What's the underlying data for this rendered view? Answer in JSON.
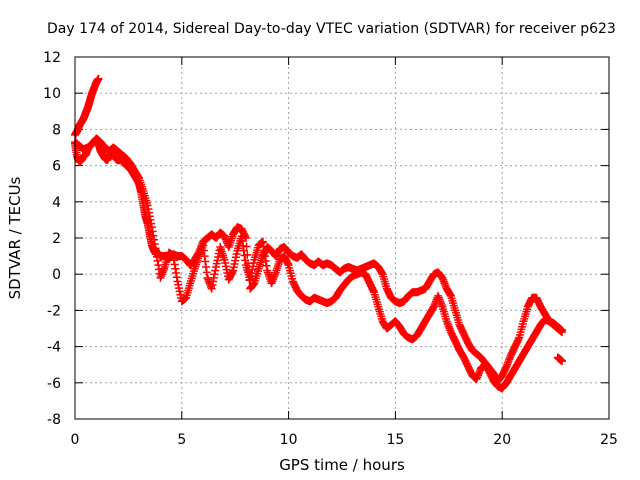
{
  "chart_data": {
    "type": "scatter",
    "title": "Day 174 of 2014, Sidereal Day-to-day VTEC variation (SDTVAR) for receiver p623",
    "xlabel": "GPS time / hours",
    "ylabel": "SDTVAR / TECUs",
    "xlim": [
      0,
      25
    ],
    "ylim": [
      -8,
      12
    ],
    "xticks": [
      0,
      5,
      10,
      15,
      20,
      25
    ],
    "yticks": [
      -8,
      -6,
      -4,
      -2,
      0,
      2,
      4,
      6,
      8,
      10,
      12
    ],
    "grid": true,
    "marker": "+",
    "marker_color": "#ff0000",
    "series": [
      {
        "name": "main-trace",
        "points": [
          [
            0.0,
            7.2
          ],
          [
            0.1,
            6.5
          ],
          [
            0.2,
            6.2
          ],
          [
            0.3,
            6.3
          ],
          [
            0.4,
            6.5
          ],
          [
            0.5,
            6.6
          ],
          [
            0.6,
            6.9
          ],
          [
            0.7,
            7.1
          ],
          [
            0.8,
            7.2
          ],
          [
            0.9,
            7.3
          ],
          [
            1.0,
            7.4
          ],
          [
            1.1,
            7.2
          ],
          [
            1.2,
            6.8
          ],
          [
            1.3,
            6.6
          ],
          [
            1.4,
            6.4
          ],
          [
            1.5,
            6.3
          ],
          [
            1.6,
            6.5
          ],
          [
            1.7,
            6.7
          ],
          [
            1.8,
            6.6
          ],
          [
            1.9,
            6.4
          ],
          [
            2.0,
            6.3
          ],
          [
            2.2,
            6.3
          ],
          [
            2.4,
            6.0
          ],
          [
            2.6,
            5.8
          ],
          [
            2.8,
            5.4
          ],
          [
            3.0,
            5.0
          ],
          [
            3.1,
            4.5
          ],
          [
            3.2,
            3.8
          ],
          [
            3.3,
            3.2
          ],
          [
            3.4,
            2.8
          ],
          [
            3.5,
            2.2
          ],
          [
            3.6,
            1.6
          ],
          [
            3.7,
            1.3
          ],
          [
            3.8,
            1.1
          ],
          [
            3.9,
            1.2
          ],
          [
            4.0,
            1.0
          ],
          [
            4.2,
            1.0
          ],
          [
            4.4,
            0.9
          ],
          [
            4.6,
            1.1
          ],
          [
            4.8,
            1.0
          ],
          [
            5.0,
            1.0
          ],
          [
            5.2,
            0.8
          ],
          [
            5.4,
            0.5
          ],
          [
            5.6,
            0.8
          ],
          [
            5.8,
            1.2
          ],
          [
            6.0,
            1.8
          ],
          [
            6.2,
            2.0
          ],
          [
            6.4,
            2.2
          ],
          [
            6.6,
            2.0
          ],
          [
            6.8,
            2.3
          ],
          [
            7.0,
            2.1
          ],
          [
            7.2,
            1.5
          ],
          [
            7.4,
            2.2
          ],
          [
            7.6,
            2.6
          ],
          [
            7.8,
            2.5
          ],
          [
            8.0,
            2.0
          ],
          [
            8.2,
            -0.8
          ],
          [
            8.4,
            -0.5
          ],
          [
            8.6,
            0.3
          ],
          [
            8.8,
            1.0
          ],
          [
            9.0,
            1.5
          ],
          [
            9.2,
            1.3
          ],
          [
            9.4,
            1.0
          ],
          [
            9.6,
            1.4
          ],
          [
            9.8,
            1.5
          ],
          [
            10.0,
            1.2
          ],
          [
            10.2,
            1.0
          ],
          [
            10.4,
            0.9
          ],
          [
            10.6,
            1.1
          ],
          [
            10.8,
            0.8
          ],
          [
            11.0,
            0.6
          ],
          [
            11.2,
            0.5
          ],
          [
            11.4,
            0.7
          ],
          [
            11.6,
            0.5
          ],
          [
            11.8,
            0.6
          ],
          [
            12.0,
            0.5
          ],
          [
            12.2,
            0.3
          ],
          [
            12.4,
            0.1
          ],
          [
            12.6,
            0.3
          ],
          [
            12.8,
            0.4
          ],
          [
            13.0,
            0.3
          ],
          [
            13.2,
            0.2
          ],
          [
            13.4,
            0.3
          ],
          [
            13.6,
            0.4
          ],
          [
            13.8,
            0.5
          ],
          [
            14.0,
            0.6
          ],
          [
            14.2,
            0.4
          ],
          [
            14.4,
            0.0
          ],
          [
            14.6,
            -0.8
          ],
          [
            14.8,
            -1.3
          ],
          [
            15.0,
            -1.5
          ],
          [
            15.2,
            -1.6
          ],
          [
            15.4,
            -1.5
          ],
          [
            15.6,
            -1.2
          ],
          [
            15.8,
            -1.0
          ],
          [
            16.0,
            -1.0
          ],
          [
            16.2,
            -0.9
          ],
          [
            16.4,
            -0.8
          ],
          [
            16.6,
            -0.4
          ],
          [
            16.8,
            0.0
          ],
          [
            17.0,
            0.1
          ],
          [
            17.2,
            -0.2
          ],
          [
            17.4,
            -0.8
          ],
          [
            17.6,
            -1.2
          ],
          [
            17.8,
            -2.0
          ],
          [
            18.0,
            -2.8
          ],
          [
            18.2,
            -3.3
          ],
          [
            18.4,
            -3.8
          ],
          [
            18.6,
            -4.2
          ],
          [
            18.8,
            -4.4
          ],
          [
            19.0,
            -4.6
          ],
          [
            19.2,
            -4.9
          ],
          [
            19.4,
            -5.2
          ],
          [
            19.6,
            -5.5
          ],
          [
            19.8,
            -5.9
          ],
          [
            20.0,
            -5.6
          ],
          [
            20.2,
            -5.1
          ],
          [
            20.4,
            -4.5
          ],
          [
            20.6,
            -4.0
          ],
          [
            20.8,
            -3.5
          ],
          [
            21.0,
            -2.6
          ],
          [
            21.2,
            -1.8
          ],
          [
            21.4,
            -1.3
          ],
          [
            21.6,
            -1.3
          ],
          [
            21.8,
            -1.8
          ],
          [
            22.0,
            -2.2
          ],
          [
            22.2,
            -2.6
          ],
          [
            22.4,
            -2.8
          ],
          [
            22.6,
            -3.0
          ],
          [
            22.8,
            -3.2
          ]
        ]
      },
      {
        "name": "offset-trace",
        "points": [
          [
            0.0,
            7.3
          ],
          [
            0.2,
            7.1
          ],
          [
            0.4,
            6.9
          ],
          [
            0.6,
            7.0
          ],
          [
            0.8,
            7.2
          ],
          [
            1.0,
            7.5
          ],
          [
            1.2,
            7.3
          ],
          [
            1.4,
            7.0
          ],
          [
            1.6,
            6.8
          ],
          [
            1.8,
            7.0
          ],
          [
            2.0,
            6.8
          ],
          [
            2.2,
            6.6
          ],
          [
            2.4,
            6.4
          ],
          [
            2.6,
            6.1
          ],
          [
            2.8,
            5.7
          ],
          [
            3.0,
            5.3
          ],
          [
            3.2,
            4.6
          ],
          [
            3.4,
            3.8
          ],
          [
            3.6,
            2.6
          ],
          [
            3.8,
            1.2
          ],
          [
            4.0,
            -0.2
          ],
          [
            4.2,
            0.4
          ],
          [
            4.4,
            1.2
          ],
          [
            4.6,
            1.0
          ],
          [
            4.8,
            -0.4
          ],
          [
            5.0,
            -1.5
          ],
          [
            5.2,
            -1.3
          ],
          [
            5.4,
            -0.5
          ],
          [
            5.6,
            0.3
          ],
          [
            5.8,
            1.0
          ],
          [
            6.0,
            1.6
          ],
          [
            6.2,
            -0.2
          ],
          [
            6.4,
            -0.8
          ],
          [
            6.6,
            0.4
          ],
          [
            6.8,
            1.5
          ],
          [
            7.0,
            0.8
          ],
          [
            7.2,
            -0.3
          ],
          [
            7.4,
            0.2
          ],
          [
            7.6,
            1.3
          ],
          [
            7.8,
            2.1
          ],
          [
            8.0,
            0.5
          ],
          [
            8.2,
            -0.3
          ],
          [
            8.4,
            0.8
          ],
          [
            8.6,
            1.6
          ],
          [
            8.8,
            1.8
          ],
          [
            9.0,
            0.2
          ],
          [
            9.2,
            -0.5
          ],
          [
            9.4,
            0.1
          ],
          [
            9.6,
            0.8
          ],
          [
            9.8,
            1.0
          ],
          [
            10.0,
            0.5
          ],
          [
            10.2,
            -0.4
          ],
          [
            10.4,
            -0.9
          ],
          [
            10.6,
            -1.2
          ],
          [
            10.8,
            -1.4
          ],
          [
            11.0,
            -1.5
          ],
          [
            11.2,
            -1.3
          ],
          [
            11.4,
            -1.4
          ],
          [
            11.6,
            -1.5
          ],
          [
            11.8,
            -1.6
          ],
          [
            12.0,
            -1.5
          ],
          [
            12.2,
            -1.3
          ],
          [
            12.4,
            -0.9
          ],
          [
            12.6,
            -0.6
          ],
          [
            12.8,
            -0.3
          ],
          [
            13.0,
            -0.1
          ],
          [
            13.2,
            0.0
          ],
          [
            13.4,
            0.1
          ],
          [
            13.6,
            0.0
          ],
          [
            13.8,
            -0.5
          ],
          [
            14.0,
            -1.0
          ],
          [
            14.2,
            -1.8
          ],
          [
            14.4,
            -2.6
          ],
          [
            14.6,
            -3.0
          ],
          [
            14.8,
            -2.8
          ],
          [
            15.0,
            -2.6
          ],
          [
            15.2,
            -2.9
          ],
          [
            15.4,
            -3.3
          ],
          [
            15.6,
            -3.5
          ],
          [
            15.8,
            -3.6
          ],
          [
            16.0,
            -3.4
          ],
          [
            16.2,
            -3.0
          ],
          [
            16.4,
            -2.6
          ],
          [
            16.6,
            -2.2
          ],
          [
            16.8,
            -1.8
          ],
          [
            17.0,
            -1.2
          ],
          [
            17.2,
            -1.8
          ],
          [
            17.4,
            -2.6
          ],
          [
            17.6,
            -3.2
          ],
          [
            17.8,
            -3.7
          ],
          [
            18.0,
            -4.2
          ],
          [
            18.2,
            -4.6
          ],
          [
            18.4,
            -5.1
          ],
          [
            18.6,
            -5.6
          ],
          [
            18.8,
            -5.8
          ],
          [
            19.0,
            -5.2
          ],
          [
            19.2,
            -5.0
          ],
          [
            19.4,
            -5.4
          ],
          [
            19.6,
            -5.9
          ],
          [
            19.8,
            -6.2
          ],
          [
            20.0,
            -6.3
          ],
          [
            20.2,
            -6.0
          ],
          [
            20.4,
            -5.6
          ],
          [
            20.6,
            -5.2
          ],
          [
            20.8,
            -4.8
          ],
          [
            21.0,
            -4.4
          ],
          [
            21.2,
            -4.0
          ],
          [
            21.4,
            -3.6
          ],
          [
            21.6,
            -3.2
          ],
          [
            21.8,
            -2.8
          ],
          [
            22.0,
            -2.5
          ],
          [
            22.2,
            -2.6
          ],
          [
            22.4,
            -2.7
          ],
          [
            22.6,
            -2.9
          ],
          [
            22.8,
            -3.1
          ]
        ]
      },
      {
        "name": "early-spike",
        "points": [
          [
            0.0,
            7.7
          ],
          [
            0.1,
            7.9
          ],
          [
            0.2,
            8.2
          ],
          [
            0.3,
            8.4
          ],
          [
            0.4,
            8.6
          ],
          [
            0.5,
            8.9
          ],
          [
            0.6,
            9.2
          ],
          [
            0.7,
            9.6
          ],
          [
            0.8,
            10.0
          ],
          [
            0.9,
            10.3
          ],
          [
            1.0,
            10.6
          ],
          [
            1.1,
            10.8
          ]
        ]
      },
      {
        "name": "late-fragment",
        "points": [
          [
            22.6,
            -4.6
          ],
          [
            22.7,
            -4.7
          ],
          [
            22.8,
            -4.8
          ]
        ]
      }
    ]
  }
}
